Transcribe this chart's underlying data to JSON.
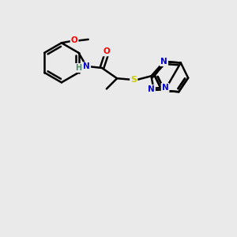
{
  "background_color": "#eaeaea",
  "bond_color": "#000000",
  "atom_colors": {
    "N": "#0000cc",
    "O": "#ff0000",
    "S": "#cccc00",
    "H": "#4a8a6a",
    "C": "#000000"
  },
  "figsize": [
    3.0,
    3.0
  ],
  "dpi": 100
}
